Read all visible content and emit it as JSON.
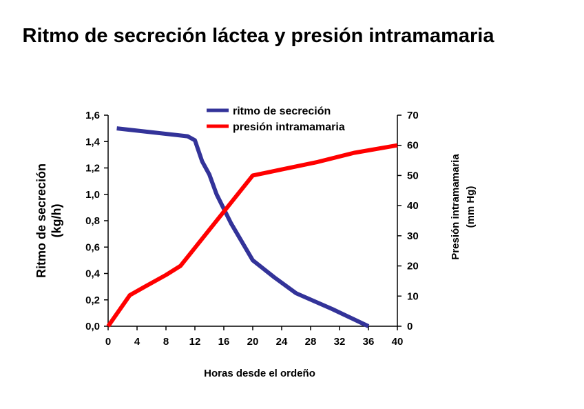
{
  "chart_data": {
    "type": "line",
    "title": "Ritmo de secreción láctea y presión intramamaria",
    "xlabel": "Horas desde el ordeño",
    "ylabel_left": "Ritmo de secreción (kg/h)",
    "ylabel_left_lines": [
      "Ritmo de secreción",
      "(kg/h)"
    ],
    "ylabel_right": "Presión intramamaria (mm Hg)",
    "ylabel_right_lines": [
      "Presión intramamaria",
      "(mm Hg)"
    ],
    "xlim": [
      0,
      40
    ],
    "ylim_left": [
      0,
      1.6
    ],
    "ylim_right": [
      0,
      70
    ],
    "x_ticks": [
      "0",
      "4",
      "8",
      "12",
      "16",
      "20",
      "24",
      "28",
      "32",
      "36",
      "40"
    ],
    "y_left_ticks": [
      "0,0",
      "0,2",
      "0,4",
      "0,6",
      "0,8",
      "1,0",
      "1,2",
      "1,4",
      "1,6"
    ],
    "y_right_ticks": [
      "0",
      "10",
      "20",
      "30",
      "40",
      "50",
      "60",
      "70"
    ],
    "grid": false,
    "legend_placement": "top-center",
    "series": [
      {
        "name": "ritmo de secreción",
        "axis": "left",
        "color": "#333399",
        "x": [
          1.2,
          11,
          12,
          13,
          14,
          15,
          17,
          20,
          23,
          26,
          31,
          36
        ],
        "y": [
          1.5,
          1.44,
          1.41,
          1.25,
          1.15,
          1.0,
          0.78,
          0.5,
          0.37,
          0.25,
          0.13,
          0.0
        ]
      },
      {
        "name": "presión intramamaria",
        "axis": "right",
        "color": "#ff0000",
        "x": [
          0,
          3,
          5,
          8,
          10,
          11,
          12,
          16,
          20,
          24,
          29,
          34,
          40
        ],
        "y": [
          0,
          10.3,
          13,
          17,
          20,
          23,
          26,
          38,
          50,
          52,
          54.5,
          57.5,
          60
        ]
      }
    ]
  }
}
